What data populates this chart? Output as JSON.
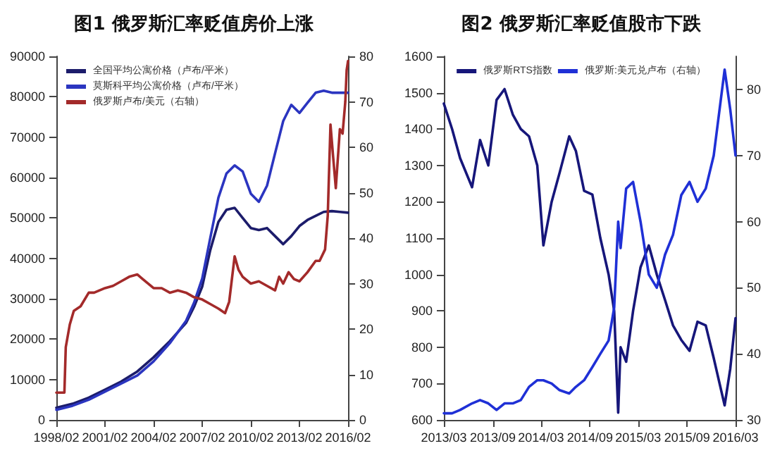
{
  "chart_data": [
    {
      "type": "line",
      "title": "图1 俄罗斯汇率贬值房价上涨",
      "legend": "top left",
      "grid": false,
      "marker": "none",
      "line_style": "solid",
      "x": [
        "1998-02",
        "1999-02",
        "2000-02",
        "2001-02",
        "2002-02",
        "2003-02",
        "2004-02",
        "2005-02",
        "2006-02",
        "2006-08",
        "2007-02",
        "2007-08",
        "2008-02",
        "2008-08",
        "2009-02",
        "2009-08",
        "2010-02",
        "2010-08",
        "2011-02",
        "2011-08",
        "2012-02",
        "2012-08",
        "2013-02",
        "2013-08",
        "2014-02",
        "2014-08",
        "2015-02",
        "2015-08",
        "2016-02"
      ],
      "xlim": [
        "1998-02",
        "2016-02"
      ],
      "xticks": [
        {
          "value": "1998-02",
          "label": "1998/02"
        },
        {
          "value": "2001-02",
          "label": "2001/02"
        },
        {
          "value": "2004-02",
          "label": "2004/02"
        },
        {
          "value": "2007-02",
          "label": "2007/02"
        },
        {
          "value": "2010-02",
          "label": "2010/02"
        },
        {
          "value": "2013-02",
          "label": "2013/02"
        },
        {
          "value": "2016-02",
          "label": "2016/02"
        }
      ],
      "ylim": [
        0,
        90000
      ],
      "yticks": [
        0,
        10000,
        20000,
        30000,
        40000,
        50000,
        60000,
        70000,
        80000,
        90000
      ],
      "y2lim": [
        0,
        80
      ],
      "y2ticks": [
        0,
        10,
        20,
        30,
        40,
        50,
        60,
        70,
        80
      ],
      "series": [
        {
          "name": "全国平均公寓价格（卢布/平米）",
          "color": "#1c1c6b",
          "values": [
            3000,
            4000,
            5500,
            7500,
            9500,
            12000,
            15500,
            19500,
            24000,
            28000,
            33000,
            42000,
            49000,
            52000,
            52500,
            50000,
            47500,
            47000,
            47500,
            45500,
            43500,
            45500,
            48000,
            49500,
            50500,
            51500,
            51700,
            51500,
            51300
          ]
        },
        {
          "name": "莫斯科平均公寓价格（卢布/平米）",
          "color": "#2b35c0",
          "values": [
            2500,
            3500,
            5000,
            7000,
            9000,
            11000,
            14500,
            19000,
            24500,
            29000,
            35000,
            45000,
            55000,
            61000,
            63000,
            61500,
            56000,
            54000,
            58000,
            66000,
            74000,
            78000,
            76000,
            78500,
            81000,
            81500,
            81000,
            81000,
            81000
          ]
        },
        {
          "name": "俄罗斯卢布/美元（右轴）",
          "color": "#a32a2a",
          "axis": "y2",
          "x": [
            "1998-02",
            "1998-08",
            "1998-09",
            "1998-12",
            "1999-03",
            "1999-08",
            "2000-02",
            "2000-06",
            "2001-02",
            "2001-08",
            "2002-02",
            "2002-08",
            "2003-02",
            "2003-06",
            "2004-02",
            "2004-08",
            "2005-02",
            "2005-08",
            "2006-02",
            "2006-08",
            "2007-02",
            "2007-08",
            "2008-02",
            "2008-07",
            "2008-10",
            "2009-02",
            "2009-05",
            "2009-08",
            "2010-02",
            "2010-08",
            "2011-02",
            "2011-08",
            "2011-11",
            "2012-02",
            "2012-06",
            "2012-10",
            "2013-02",
            "2013-08",
            "2014-02",
            "2014-05",
            "2014-09",
            "2014-11",
            "2015-01",
            "2015-03",
            "2015-05",
            "2015-08",
            "2015-10",
            "2015-12",
            "2016-01",
            "2016-02"
          ],
          "values": [
            6,
            6,
            16,
            21,
            24,
            25,
            28,
            28,
            29,
            29.5,
            30.5,
            31.5,
            32,
            31,
            29,
            29,
            28,
            28.5,
            28,
            27,
            26.5,
            25.5,
            24.5,
            23.5,
            26,
            36,
            33,
            31.5,
            30,
            30.5,
            29.5,
            28.5,
            31.5,
            30,
            32.5,
            31,
            30.5,
            32.5,
            35,
            35,
            37.5,
            45,
            65,
            58,
            51,
            64,
            63,
            70,
            77,
            79
          ]
        }
      ]
    },
    {
      "type": "line",
      "title": "图2 俄罗斯汇率贬值股市下跌",
      "legend": "top",
      "grid": false,
      "marker": "none",
      "line_style": "solid",
      "x": [
        "2013-03-01",
        "2013-04-01",
        "2013-05-01",
        "2013-06-15",
        "2013-07-15",
        "2013-08-15",
        "2013-09-15",
        "2013-10-15",
        "2013-11-15",
        "2013-12-15",
        "2014-01-15",
        "2014-02-15",
        "2014-03-10",
        "2014-04-10",
        "2014-05-10",
        "2014-06-15",
        "2014-07-10",
        "2014-08-10",
        "2014-09-10",
        "2014-10-10",
        "2014-11-10",
        "2014-12-01",
        "2014-12-16",
        "2014-12-25",
        "2015-01-15",
        "2015-02-10",
        "2015-03-10",
        "2015-04-10",
        "2015-05-10",
        "2015-06-10",
        "2015-07-10",
        "2015-08-10",
        "2015-09-10",
        "2015-10-10",
        "2015-11-10",
        "2015-12-10",
        "2016-01-20",
        "2016-02-10",
        "2016-03-01"
      ],
      "xlim": [
        "2013-03-01",
        "2016-03-01"
      ],
      "xticks": [
        {
          "value": "2013-03-01",
          "label": "2013/03"
        },
        {
          "value": "2013-09-01",
          "label": "2013/09"
        },
        {
          "value": "2014-03-01",
          "label": "2014/03"
        },
        {
          "value": "2014-09-01",
          "label": "2014/09"
        },
        {
          "value": "2015-03-01",
          "label": "2015/03"
        },
        {
          "value": "2015-09-01",
          "label": "2015/09"
        },
        {
          "value": "2016-03-01",
          "label": "2016/03"
        }
      ],
      "ylim": [
        600,
        1600
      ],
      "yticks": [
        600,
        700,
        800,
        900,
        1000,
        1100,
        1200,
        1300,
        1400,
        1500,
        1600
      ],
      "y2lim": [
        30,
        85
      ],
      "y2ticks": [
        30,
        40,
        50,
        60,
        70,
        80
      ],
      "series": [
        {
          "name": "俄罗斯RTS指数",
          "color": "#16167a",
          "values": [
            1470,
            1400,
            1320,
            1240,
            1370,
            1300,
            1480,
            1510,
            1440,
            1400,
            1380,
            1300,
            1080,
            1200,
            1280,
            1380,
            1340,
            1230,
            1220,
            1100,
            1000,
            900,
            620,
            800,
            760,
            900,
            1020,
            1080,
            1000,
            930,
            860,
            820,
            790,
            870,
            860,
            770,
            640,
            740,
            880
          ]
        },
        {
          "name": "俄罗斯:美元兑卢布（右轴）",
          "color": "#1f30d6",
          "axis": "y2",
          "values": [
            31,
            31,
            31.5,
            32.5,
            33,
            32.5,
            31.5,
            32.5,
            32.5,
            33,
            35,
            36,
            36,
            35.5,
            34.5,
            34,
            35,
            36,
            38,
            40,
            42,
            47,
            60,
            56,
            65,
            66,
            60,
            52,
            50,
            55,
            58,
            64,
            66,
            63,
            65,
            70,
            83,
            77,
            70
          ]
        }
      ]
    }
  ]
}
